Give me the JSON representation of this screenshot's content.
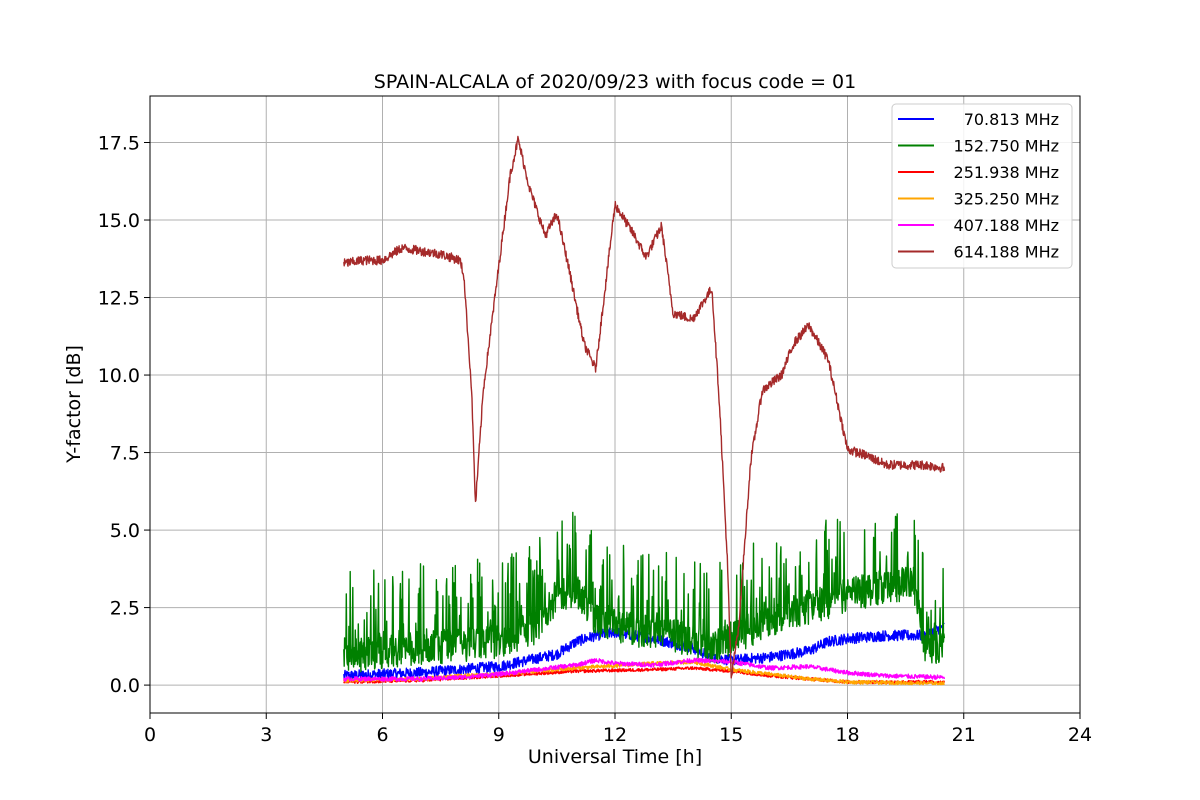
{
  "chart_data": {
    "type": "line",
    "title": "SPAIN-ALCALA of 2020/09/23 with focus code = 01",
    "xlabel": "Universal Time [h]",
    "ylabel": "Y-factor [dB]",
    "xlim": [
      0,
      24
    ],
    "ylim": [
      -0.9,
      19.0
    ],
    "xticks": [
      0,
      3,
      6,
      9,
      12,
      15,
      18,
      21,
      24
    ],
    "xtick_labels": [
      "0",
      "3",
      "6",
      "9",
      "12",
      "15",
      "18",
      "21",
      "24"
    ],
    "yticks": [
      0.0,
      2.5,
      5.0,
      7.5,
      10.0,
      12.5,
      15.0,
      17.5
    ],
    "ytick_labels": [
      "0.0",
      "2.5",
      "5.0",
      "7.5",
      "10.0",
      "12.5",
      "15.0",
      "17.5"
    ],
    "grid": true,
    "legend_position": "top-right",
    "series": [
      {
        "name": "70.813 MHz",
        "color": "#0000ff",
        "noise": 0.35,
        "points": [
          [
            5.0,
            0.3
          ],
          [
            7.0,
            0.4
          ],
          [
            9.0,
            0.6
          ],
          [
            10.5,
            1.0
          ],
          [
            11.0,
            1.4
          ],
          [
            11.5,
            1.6
          ],
          [
            12.0,
            1.7
          ],
          [
            13.0,
            1.5
          ],
          [
            14.0,
            1.2
          ],
          [
            14.5,
            0.9
          ],
          [
            15.0,
            0.8
          ],
          [
            16.0,
            0.9
          ],
          [
            17.0,
            1.1
          ],
          [
            17.5,
            1.4
          ],
          [
            18.0,
            1.5
          ],
          [
            19.0,
            1.6
          ],
          [
            20.0,
            1.6
          ],
          [
            20.5,
            1.9
          ]
        ]
      },
      {
        "name": "152.750 MHz",
        "color": "#008000",
        "noise": 2.2,
        "points": [
          [
            5.0,
            1.0
          ],
          [
            6.0,
            1.2
          ],
          [
            7.0,
            1.3
          ],
          [
            8.0,
            1.4
          ],
          [
            9.0,
            1.5
          ],
          [
            10.0,
            2.0
          ],
          [
            10.5,
            3.0
          ],
          [
            11.0,
            3.2
          ],
          [
            11.5,
            2.2
          ],
          [
            12.0,
            2.0
          ],
          [
            13.0,
            1.8
          ],
          [
            14.0,
            1.6
          ],
          [
            14.5,
            1.3
          ],
          [
            15.0,
            1.6
          ],
          [
            16.0,
            2.2
          ],
          [
            17.0,
            2.6
          ],
          [
            18.0,
            3.0
          ],
          [
            19.0,
            3.3
          ],
          [
            19.7,
            3.4
          ],
          [
            20.0,
            1.3
          ],
          [
            20.5,
            1.4
          ]
        ]
      },
      {
        "name": "251.938 MHz",
        "color": "#ff0000",
        "noise": 0.1,
        "points": [
          [
            5.0,
            0.1
          ],
          [
            7.0,
            0.15
          ],
          [
            9.0,
            0.3
          ],
          [
            11.0,
            0.45
          ],
          [
            13.0,
            0.5
          ],
          [
            14.0,
            0.55
          ],
          [
            15.0,
            0.45
          ],
          [
            16.0,
            0.3
          ],
          [
            17.0,
            0.2
          ],
          [
            18.0,
            0.1
          ],
          [
            20.5,
            0.1
          ]
        ]
      },
      {
        "name": "325.250 MHz",
        "color": "#ffa500",
        "noise": 0.12,
        "points": [
          [
            5.0,
            0.15
          ],
          [
            7.0,
            0.2
          ],
          [
            8.0,
            0.3
          ],
          [
            9.0,
            0.35
          ],
          [
            11.0,
            0.55
          ],
          [
            13.0,
            0.7
          ],
          [
            14.0,
            0.75
          ],
          [
            15.0,
            0.5
          ],
          [
            16.0,
            0.35
          ],
          [
            17.0,
            0.2
          ],
          [
            18.0,
            0.1
          ],
          [
            20.5,
            0.05
          ]
        ]
      },
      {
        "name": "407.188 MHz",
        "color": "#ff00ff",
        "noise": 0.14,
        "points": [
          [
            5.0,
            0.2
          ],
          [
            7.0,
            0.2
          ],
          [
            8.0,
            0.25
          ],
          [
            9.0,
            0.35
          ],
          [
            10.0,
            0.5
          ],
          [
            11.0,
            0.65
          ],
          [
            11.5,
            0.8
          ],
          [
            12.0,
            0.7
          ],
          [
            13.0,
            0.65
          ],
          [
            14.0,
            0.8
          ],
          [
            15.0,
            0.75
          ],
          [
            16.0,
            0.55
          ],
          [
            17.0,
            0.6
          ],
          [
            18.0,
            0.4
          ],
          [
            19.0,
            0.3
          ],
          [
            20.5,
            0.25
          ]
        ]
      },
      {
        "name": "614.188 MHz",
        "color": "#a52a2a",
        "noise": 0.3,
        "points": [
          [
            5.0,
            13.6
          ],
          [
            5.5,
            13.7
          ],
          [
            6.0,
            13.7
          ],
          [
            6.5,
            14.1
          ],
          [
            7.0,
            14.0
          ],
          [
            7.5,
            13.9
          ],
          [
            8.0,
            13.7
          ],
          [
            8.1,
            13.2
          ],
          [
            8.3,
            9.5
          ],
          [
            8.4,
            5.8
          ],
          [
            8.6,
            9.5
          ],
          [
            9.0,
            13.5
          ],
          [
            9.3,
            16.5
          ],
          [
            9.5,
            17.6
          ],
          [
            9.8,
            16.0
          ],
          [
            10.2,
            14.5
          ],
          [
            10.5,
            15.2
          ],
          [
            10.8,
            13.5
          ],
          [
            11.2,
            11.0
          ],
          [
            11.5,
            10.2
          ],
          [
            12.0,
            15.5
          ],
          [
            12.5,
            14.5
          ],
          [
            12.8,
            13.8
          ],
          [
            13.2,
            14.8
          ],
          [
            13.5,
            12.0
          ],
          [
            14.0,
            11.8
          ],
          [
            14.5,
            12.8
          ],
          [
            14.7,
            9.0
          ],
          [
            14.9,
            4.0
          ],
          [
            15.0,
            0.2
          ],
          [
            15.2,
            2.0
          ],
          [
            15.5,
            7.2
          ],
          [
            15.8,
            9.5
          ],
          [
            16.3,
            10.0
          ],
          [
            16.6,
            11.0
          ],
          [
            17.0,
            11.6
          ],
          [
            17.5,
            10.5
          ],
          [
            18.0,
            7.6
          ],
          [
            18.5,
            7.4
          ],
          [
            19.0,
            7.1
          ],
          [
            20.0,
            7.1
          ],
          [
            20.5,
            7.0
          ]
        ]
      }
    ]
  }
}
